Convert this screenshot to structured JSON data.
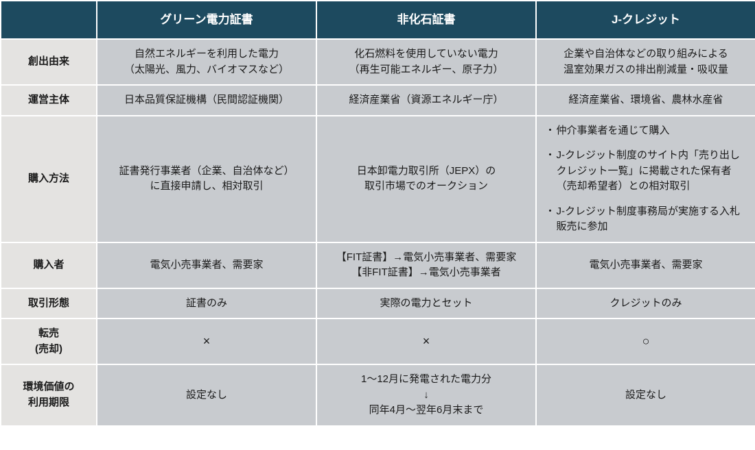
{
  "colors": {
    "header_bg": "#1d4a5f",
    "header_fg": "#ffffff",
    "rowheader_bg": "#e4e3e1",
    "cell_bg": "#c8cbcf",
    "cell_fg": "#1a1a1a",
    "border": "#ffffff"
  },
  "columns": [
    "",
    "グリーン電力証書",
    "非化石証書",
    "J-クレジット"
  ],
  "rows": [
    {
      "label": "創出由来",
      "cells": [
        {
          "align": "center",
          "lines": [
            "自然エネルギーを利用した電力",
            "（太陽光、風力、バイオマスなど）"
          ]
        },
        {
          "align": "center",
          "lines": [
            "化石燃料を使用していない電力",
            "（再生可能エネルギー、原子力）"
          ]
        },
        {
          "align": "center",
          "lines": [
            "企業や自治体などの取り組みによる",
            "温室効果ガスの排出削減量・吸収量"
          ]
        }
      ]
    },
    {
      "label": "運営主体",
      "cells": [
        {
          "align": "center",
          "lines": [
            "日本品質保証機構（民間認証機関）"
          ]
        },
        {
          "align": "center",
          "lines": [
            "経済産業省（資源エネルギー庁）"
          ]
        },
        {
          "align": "center",
          "lines": [
            "経済産業省、環境省、農林水産省"
          ]
        }
      ]
    },
    {
      "label": "購入方法",
      "cells": [
        {
          "align": "center",
          "lines": [
            "証書発行事業者（企業、自治体など）",
            "に直接申請し、相対取引"
          ]
        },
        {
          "align": "center",
          "lines": [
            "日本卸電力取引所（JEPX）の",
            "取引市場でのオークション"
          ]
        },
        {
          "align": "left",
          "bullets": [
            "仲介事業者を通じて購入",
            "J-クレジット制度のサイト内「売り出しクレジット一覧」に掲載された保有者（売却希望者）との相対取引",
            "J-クレジット制度事務局が実施する入札販売に参加"
          ]
        }
      ]
    },
    {
      "label": "購入者",
      "cells": [
        {
          "align": "center",
          "lines": [
            "電気小売事業者、需要家"
          ]
        },
        {
          "align": "center",
          "lines": [
            "【FIT証書】→電気小売事業者、需要家",
            "【非FIT証書】→電気小売事業者"
          ]
        },
        {
          "align": "center",
          "lines": [
            "電気小売事業者、需要家"
          ]
        }
      ]
    },
    {
      "label": "取引形態",
      "cells": [
        {
          "align": "center",
          "lines": [
            "証書のみ"
          ]
        },
        {
          "align": "center",
          "lines": [
            "実際の電力とセット"
          ]
        },
        {
          "align": "center",
          "lines": [
            "クレジットのみ"
          ]
        }
      ]
    },
    {
      "label_lines": [
        "転売",
        "(売却)"
      ],
      "cells": [
        {
          "align": "center",
          "mark": "×"
        },
        {
          "align": "center",
          "mark": "×"
        },
        {
          "align": "center",
          "mark": "○"
        }
      ]
    },
    {
      "label_lines": [
        "環境価値の",
        "利用期限"
      ],
      "cells": [
        {
          "align": "center",
          "lines": [
            "設定なし"
          ]
        },
        {
          "align": "center",
          "lines": [
            "1～12月に発電された電力分",
            "↓",
            "同年4月～翌年6月末まで"
          ]
        },
        {
          "align": "center",
          "lines": [
            "設定なし"
          ]
        }
      ]
    }
  ]
}
